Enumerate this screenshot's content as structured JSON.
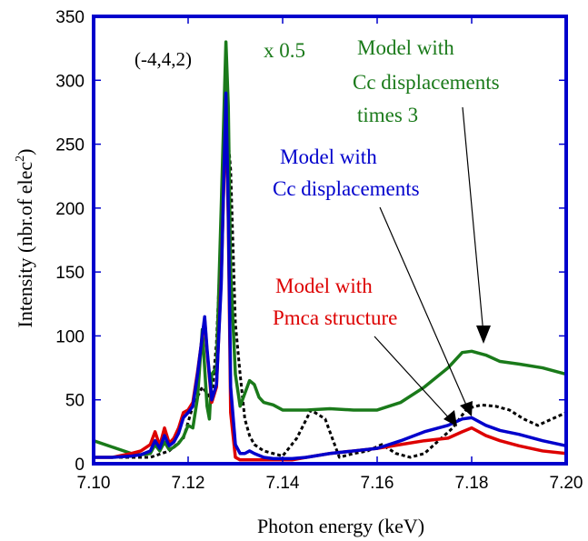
{
  "chart_data": {
    "type": "line",
    "xlabel": "Photon energy (keV)",
    "ylabel_main": "Intensity (nbr.of elec",
    "ylabel_sup": "2",
    "ylabel_close": ")",
    "xlim": [
      7.1,
      7.2
    ],
    "ylim": [
      0,
      350
    ],
    "xticks": [
      7.1,
      7.12,
      7.14,
      7.16,
      7.18,
      7.2
    ],
    "xtick_labels": [
      "7.10",
      "7.12",
      "7.14",
      "7.16",
      "7.18",
      "7.20"
    ],
    "yticks": [
      0,
      50,
      100,
      150,
      200,
      250,
      300,
      350
    ],
    "ytick_labels": [
      "0",
      "50",
      "100",
      "150",
      "200",
      "250",
      "300",
      "350"
    ],
    "grid": false,
    "reflection_label": "(-4,4,2)",
    "scale_note": "x 0.5",
    "annotations": {
      "green": [
        "Model with",
        "Cc displacements",
        "times 3"
      ],
      "blue": [
        "Model with",
        "Cc displacements"
      ],
      "red": [
        "Model with",
        "Pmca structure"
      ]
    },
    "colors": {
      "axes": "#0000cc",
      "green": "#1a7a1a",
      "blue": "#0000cc",
      "red": "#dd0000",
      "black": "#000000"
    },
    "series": [
      {
        "key": "green",
        "x": [
          7.1,
          7.104,
          7.108,
          7.11,
          7.112,
          7.113,
          7.114,
          7.115,
          7.116,
          7.117,
          7.118,
          7.119,
          7.12,
          7.121,
          7.122,
          7.123,
          7.124,
          7.1245,
          7.125,
          7.126,
          7.127,
          7.128,
          7.1285,
          7.129,
          7.13,
          7.131,
          7.132,
          7.133,
          7.134,
          7.135,
          7.136,
          7.138,
          7.14,
          7.145,
          7.15,
          7.155,
          7.16,
          7.165,
          7.17,
          7.175,
          7.178,
          7.18,
          7.183,
          7.186,
          7.19,
          7.195,
          7.2
        ],
        "y": [
          18,
          13,
          8,
          7,
          8,
          15,
          10,
          17,
          11,
          13,
          16,
          21,
          30,
          28,
          52,
          105,
          45,
          35,
          70,
          75,
          200,
          330,
          280,
          150,
          70,
          45,
          55,
          65,
          62,
          52,
          48,
          46,
          42,
          42,
          43,
          42,
          42,
          48,
          60,
          75,
          87,
          88,
          85,
          80,
          78,
          75,
          70
        ]
      },
      {
        "key": "blue",
        "x": [
          7.1,
          7.104,
          7.108,
          7.11,
          7.112,
          7.113,
          7.114,
          7.115,
          7.116,
          7.117,
          7.118,
          7.119,
          7.12,
          7.121,
          7.122,
          7.1235,
          7.124,
          7.125,
          7.126,
          7.127,
          7.128,
          7.1285,
          7.129,
          7.13,
          7.131,
          7.132,
          7.133,
          7.134,
          7.136,
          7.138,
          7.14,
          7.142,
          7.145,
          7.15,
          7.155,
          7.16,
          7.165,
          7.17,
          7.175,
          7.178,
          7.18,
          7.183,
          7.186,
          7.19,
          7.195,
          7.2
        ],
        "y": [
          5,
          5,
          6,
          7,
          10,
          18,
          12,
          22,
          14,
          17,
          24,
          36,
          40,
          45,
          70,
          115,
          90,
          50,
          62,
          140,
          290,
          200,
          60,
          15,
          8,
          8,
          10,
          8,
          5,
          4,
          4,
          4,
          5,
          8,
          10,
          12,
          18,
          25,
          30,
          35,
          36,
          30,
          26,
          23,
          18,
          14
        ]
      },
      {
        "key": "red",
        "x": [
          7.1,
          7.104,
          7.108,
          7.11,
          7.112,
          7.113,
          7.114,
          7.115,
          7.116,
          7.117,
          7.118,
          7.119,
          7.12,
          7.121,
          7.122,
          7.1235,
          7.124,
          7.125,
          7.126,
          7.127,
          7.128,
          7.1285,
          7.129,
          7.13,
          7.131,
          7.132,
          7.134,
          7.136,
          7.138,
          7.14,
          7.142,
          7.145,
          7.15,
          7.155,
          7.16,
          7.165,
          7.17,
          7.175,
          7.178,
          7.18,
          7.183,
          7.186,
          7.19,
          7.195,
          7.2
        ],
        "y": [
          5,
          5,
          8,
          10,
          15,
          25,
          14,
          28,
          16,
          20,
          28,
          40,
          42,
          48,
          72,
          113,
          88,
          48,
          60,
          145,
          280,
          190,
          40,
          5,
          3,
          3,
          3,
          3,
          3,
          3,
          3,
          5,
          8,
          10,
          12,
          15,
          18,
          20,
          25,
          28,
          22,
          18,
          14,
          10,
          8
        ]
      },
      {
        "key": "black",
        "dashed": true,
        "x": [
          7.1,
          7.104,
          7.108,
          7.112,
          7.116,
          7.119,
          7.121,
          7.123,
          7.125,
          7.126,
          7.127,
          7.128,
          7.129,
          7.13,
          7.131,
          7.132,
          7.133,
          7.134,
          7.136,
          7.138,
          7.14,
          7.143,
          7.146,
          7.149,
          7.152,
          7.155,
          7.158,
          7.161,
          7.164,
          7.167,
          7.17,
          7.173,
          7.176,
          7.179,
          7.182,
          7.185,
          7.188,
          7.191,
          7.194,
          7.197,
          7.2
        ],
        "y": [
          5,
          5,
          5,
          5,
          10,
          20,
          45,
          60,
          50,
          95,
          180,
          275,
          230,
          110,
          70,
          35,
          22,
          15,
          10,
          8,
          6,
          20,
          42,
          35,
          5,
          8,
          10,
          15,
          8,
          5,
          8,
          18,
          28,
          43,
          46,
          45,
          42,
          35,
          30,
          35,
          40
        ]
      }
    ]
  }
}
